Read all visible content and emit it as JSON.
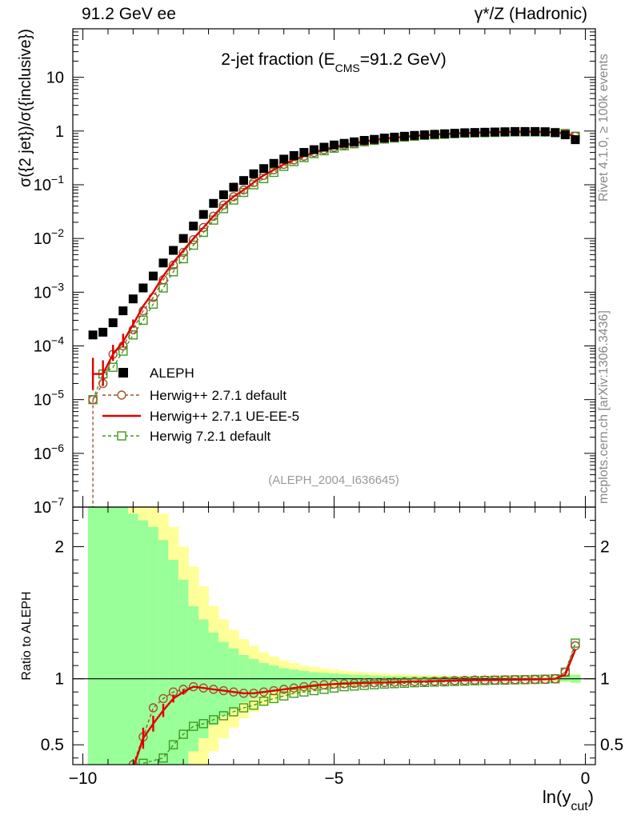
{
  "header": {
    "left": "91.2 GeV ee",
    "right": "γ*/Z (Hadronic)"
  },
  "side_labels": {
    "rivet": "Rivet 4.1.0, ≥ 100k events",
    "mcplots": "mcplots.cern.ch [arXiv:1306.3436]"
  },
  "chart_data": {
    "type": "line",
    "title": "2-jet fraction (E_CMS=91.2 GeV)",
    "watermark": "(ALEPH_2004_I636645)",
    "xlabel": "ln(y_cut)",
    "ylabel": "σ({2 jet})/σ({inclusive})",
    "ratio_ylabel": "Ratio to ALEPH",
    "xlim": [
      -10.2,
      0.2
    ],
    "ylim": [
      1e-07,
      80
    ],
    "yscale": "log",
    "ratio_ylim": [
      0.35,
      2.3
    ],
    "main_ytick_labels": [
      "10^-7",
      "10^-6",
      "10^-5",
      "10^-4",
      "10^-3",
      "10^-2",
      "10^-1",
      "1",
      "10"
    ],
    "ratio_ytick_labels": [
      "0.5",
      "1",
      "2"
    ],
    "xtick_labels": [
      "−10",
      "−5",
      "0"
    ],
    "legend": [
      {
        "name": "ALEPH",
        "style": "data"
      },
      {
        "name": "Herwig++ 2.7.1 default",
        "style": "circle"
      },
      {
        "name": "Herwig++ 2.7.1 UE-EE-5",
        "style": "line"
      },
      {
        "name": "Herwig 7.2.1 default",
        "style": "square"
      }
    ],
    "colors": {
      "data": "#000000",
      "herwig_default": "#a0522d",
      "herwig_ueee5": "#e00000",
      "herwig7": "#3c9b1c",
      "band_inner": "#99ff99",
      "band_outer": "#ffff99"
    },
    "x": [
      -9.8,
      -9.6,
      -9.4,
      -9.2,
      -9.0,
      -8.8,
      -8.6,
      -8.4,
      -8.2,
      -8.0,
      -7.8,
      -7.6,
      -7.4,
      -7.2,
      -7.0,
      -6.8,
      -6.6,
      -6.4,
      -6.2,
      -6.0,
      -5.8,
      -5.6,
      -5.4,
      -5.2,
      -5.0,
      -4.8,
      -4.6,
      -4.4,
      -4.2,
      -4.0,
      -3.8,
      -3.6,
      -3.4,
      -3.2,
      -3.0,
      -2.8,
      -2.6,
      -2.4,
      -2.2,
      -2.0,
      -1.8,
      -1.6,
      -1.4,
      -1.2,
      -1.0,
      -0.8,
      -0.6,
      -0.4,
      -0.2
    ],
    "aleph": [
      0.00016,
      0.00018,
      0.00027,
      0.00045,
      0.00075,
      0.0012,
      0.002,
      0.0035,
      0.006,
      0.01,
      0.017,
      0.028,
      0.045,
      0.065,
      0.09,
      0.12,
      0.16,
      0.2,
      0.25,
      0.3,
      0.35,
      0.4,
      0.45,
      0.5,
      0.55,
      0.59,
      0.63,
      0.67,
      0.7,
      0.74,
      0.77,
      0.8,
      0.83,
      0.85,
      0.87,
      0.89,
      0.91,
      0.93,
      0.94,
      0.95,
      0.96,
      0.97,
      0.98,
      0.98,
      0.98,
      0.97,
      0.93,
      0.85,
      0.69
    ],
    "herwig_default": [
      1e-05,
      2e-05,
      7e-05,
      0.0001,
      0.0002,
      0.00045,
      0.0008,
      0.0017,
      0.0032,
      0.0055,
      0.0095,
      0.016,
      0.026,
      0.042,
      0.06,
      0.08,
      0.11,
      0.15,
      0.19,
      0.24,
      0.29,
      0.34,
      0.4,
      0.45,
      0.5,
      0.55,
      0.59,
      0.64,
      0.68,
      0.72,
      0.75,
      0.78,
      0.81,
      0.84,
      0.86,
      0.88,
      0.9,
      0.92,
      0.93,
      0.94,
      0.95,
      0.96,
      0.97,
      0.97,
      0.97,
      0.96,
      0.94,
      0.9,
      0.8
    ],
    "herwig_ueee5": [
      3e-05,
      3e-05,
      7e-05,
      0.00012,
      0.00025,
      0.00055,
      0.001,
      0.002,
      0.0036,
      0.006,
      0.01,
      0.016,
      0.026,
      0.042,
      0.06,
      0.08,
      0.11,
      0.15,
      0.19,
      0.24,
      0.29,
      0.34,
      0.4,
      0.45,
      0.5,
      0.55,
      0.59,
      0.64,
      0.68,
      0.72,
      0.75,
      0.78,
      0.81,
      0.84,
      0.86,
      0.88,
      0.9,
      0.92,
      0.93,
      0.94,
      0.95,
      0.96,
      0.97,
      0.97,
      0.97,
      0.96,
      0.94,
      0.9,
      0.8
    ],
    "herwig7": [
      1e-05,
      3e-05,
      4e-05,
      8e-05,
      0.00016,
      0.0003,
      0.0006,
      0.0012,
      0.0024,
      0.0042,
      0.0075,
      0.013,
      0.022,
      0.036,
      0.052,
      0.072,
      0.1,
      0.13,
      0.17,
      0.22,
      0.27,
      0.32,
      0.38,
      0.43,
      0.48,
      0.53,
      0.58,
      0.63,
      0.67,
      0.71,
      0.74,
      0.77,
      0.8,
      0.83,
      0.85,
      0.87,
      0.89,
      0.91,
      0.92,
      0.93,
      0.94,
      0.95,
      0.96,
      0.96,
      0.96,
      0.96,
      0.94,
      0.9,
      0.8
    ],
    "ratio_herwig_default": [
      null,
      null,
      null,
      null,
      0.35,
      0.56,
      0.78,
      0.85,
      0.9,
      0.92,
      0.94,
      0.93,
      0.92,
      0.91,
      0.9,
      0.89,
      0.89,
      0.9,
      0.91,
      0.92,
      0.93,
      0.94,
      0.95,
      0.955,
      0.96,
      0.962,
      0.965,
      0.968,
      0.97,
      0.972,
      0.975,
      0.977,
      0.979,
      0.98,
      0.982,
      0.984,
      0.986,
      0.988,
      0.99,
      0.99,
      0.99,
      0.992,
      0.993,
      0.994,
      0.995,
      0.996,
      1.0,
      1.05,
      1.25
    ],
    "ratio_herwig_ueee5": [
      null,
      null,
      null,
      null,
      0.32,
      0.55,
      0.66,
      0.76,
      0.85,
      0.9,
      0.94,
      0.93,
      0.92,
      0.91,
      0.9,
      0.89,
      0.89,
      0.9,
      0.91,
      0.92,
      0.93,
      0.94,
      0.95,
      0.955,
      0.96,
      0.962,
      0.965,
      0.968,
      0.97,
      0.972,
      0.975,
      0.977,
      0.979,
      0.98,
      0.982,
      0.984,
      0.986,
      0.988,
      0.99,
      0.99,
      0.99,
      0.992,
      0.993,
      0.994,
      0.995,
      0.996,
      1.0,
      1.03,
      1.22
    ],
    "ratio_herwig7": [
      null,
      null,
      null,
      null,
      null,
      0.36,
      null,
      0.4,
      0.5,
      0.58,
      0.64,
      0.66,
      0.69,
      0.72,
      0.75,
      0.78,
      0.8,
      0.83,
      0.85,
      0.87,
      0.89,
      0.9,
      0.91,
      0.92,
      0.93,
      0.94,
      0.945,
      0.95,
      0.955,
      0.96,
      0.963,
      0.966,
      0.97,
      0.972,
      0.975,
      0.977,
      0.98,
      0.982,
      0.985,
      0.987,
      0.989,
      0.99,
      0.992,
      0.993,
      0.995,
      0.997,
      1.0,
      1.05,
      1.27
    ],
    "band_inner_half": [
      2.0,
      2.0,
      1.4,
      1.3,
      1.25,
      1.2,
      1.15,
      1.05,
      0.9,
      0.75,
      0.55,
      0.45,
      0.35,
      0.28,
      0.23,
      0.18,
      0.15,
      0.12,
      0.1,
      0.08,
      0.07,
      0.06,
      0.05,
      0.045,
      0.04,
      0.035,
      0.03,
      0.028,
      0.025,
      0.022,
      0.02,
      0.02,
      0.018,
      0.017,
      0.016,
      0.015,
      0.014,
      0.013,
      0.012,
      0.012,
      0.011,
      0.011,
      0.01,
      0.01,
      0.01,
      0.012,
      0.015,
      0.02,
      0.03
    ],
    "band_outer_half": [
      2.0,
      2.0,
      2.0,
      2.0,
      1.7,
      1.5,
      1.35,
      1.25,
      1.15,
      1.0,
      0.85,
      0.7,
      0.55,
      0.45,
      0.37,
      0.3,
      0.25,
      0.2,
      0.17,
      0.14,
      0.12,
      0.1,
      0.09,
      0.08,
      0.07,
      0.06,
      0.055,
      0.05,
      0.045,
      0.04,
      0.037,
      0.034,
      0.031,
      0.028,
      0.026,
      0.024,
      0.022,
      0.02,
      0.019,
      0.018,
      0.017,
      0.016,
      0.016,
      0.015,
      0.015,
      0.017,
      0.02,
      0.025,
      0.035
    ]
  }
}
